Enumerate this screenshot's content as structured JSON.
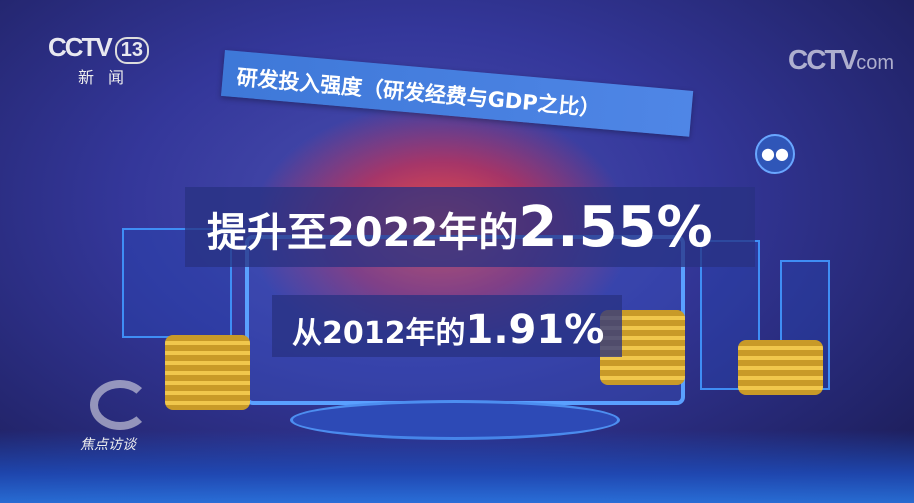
{
  "channel_logo": {
    "brand": "CCTV",
    "channel": "13",
    "subtitle": "新闻"
  },
  "watermark": {
    "brand": "CCTV",
    "suffix": "com"
  },
  "title_banner": "研发投入强度（研发经费与GDP之比）",
  "headline": {
    "prefix": "提升至2022年的",
    "value": "2.55%"
  },
  "subline": {
    "prefix": "从2012年的",
    "value": "1.91%"
  },
  "program_logo": "焦点访谈",
  "icons": [
    "people-icon",
    "coin-stack-icon",
    "monitor-icon",
    "building-icon"
  ]
}
